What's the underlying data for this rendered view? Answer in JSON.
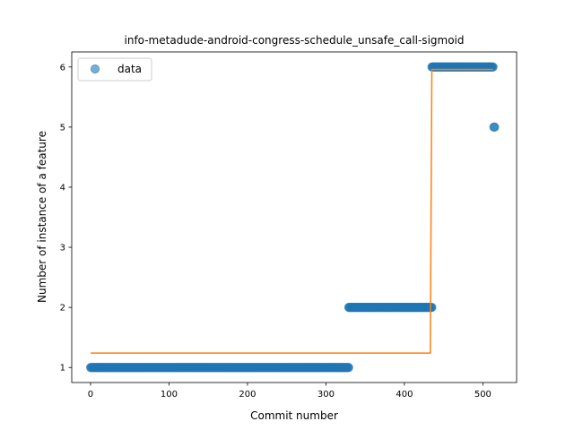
{
  "chart_data": {
    "type": "scatter",
    "title": "info-metadude-android-congress-schedule_unsafe_call-sigmoid",
    "xlabel": "Commit number",
    "ylabel": "Number of instance of a feature",
    "xlim": [
      -24,
      543
    ],
    "ylim": [
      0.75,
      6.25
    ],
    "xticks": [
      0,
      100,
      200,
      300,
      400,
      500
    ],
    "yticks": [
      1,
      2,
      3,
      4,
      5,
      6
    ],
    "grid": false,
    "legend": {
      "position": "top-left",
      "entries": [
        "data"
      ]
    },
    "series": [
      {
        "name": "data",
        "kind": "scatter",
        "color": "#1f77b4",
        "segments": [
          {
            "x_start": 0,
            "x_end": 329,
            "y": 1
          },
          {
            "x_start": 329,
            "x_end": 435,
            "y": 2
          },
          {
            "x_start": 435,
            "x_end": 513,
            "y": 6
          }
        ],
        "points": [
          {
            "x": 514,
            "y": 5
          },
          {
            "x": 515,
            "y": 5
          }
        ]
      },
      {
        "kind": "line",
        "color": "#ff7f0e",
        "x": [
          0,
          433,
          435,
          513
        ],
        "y": [
          1.24,
          1.24,
          5.96,
          5.96
        ]
      }
    ]
  }
}
